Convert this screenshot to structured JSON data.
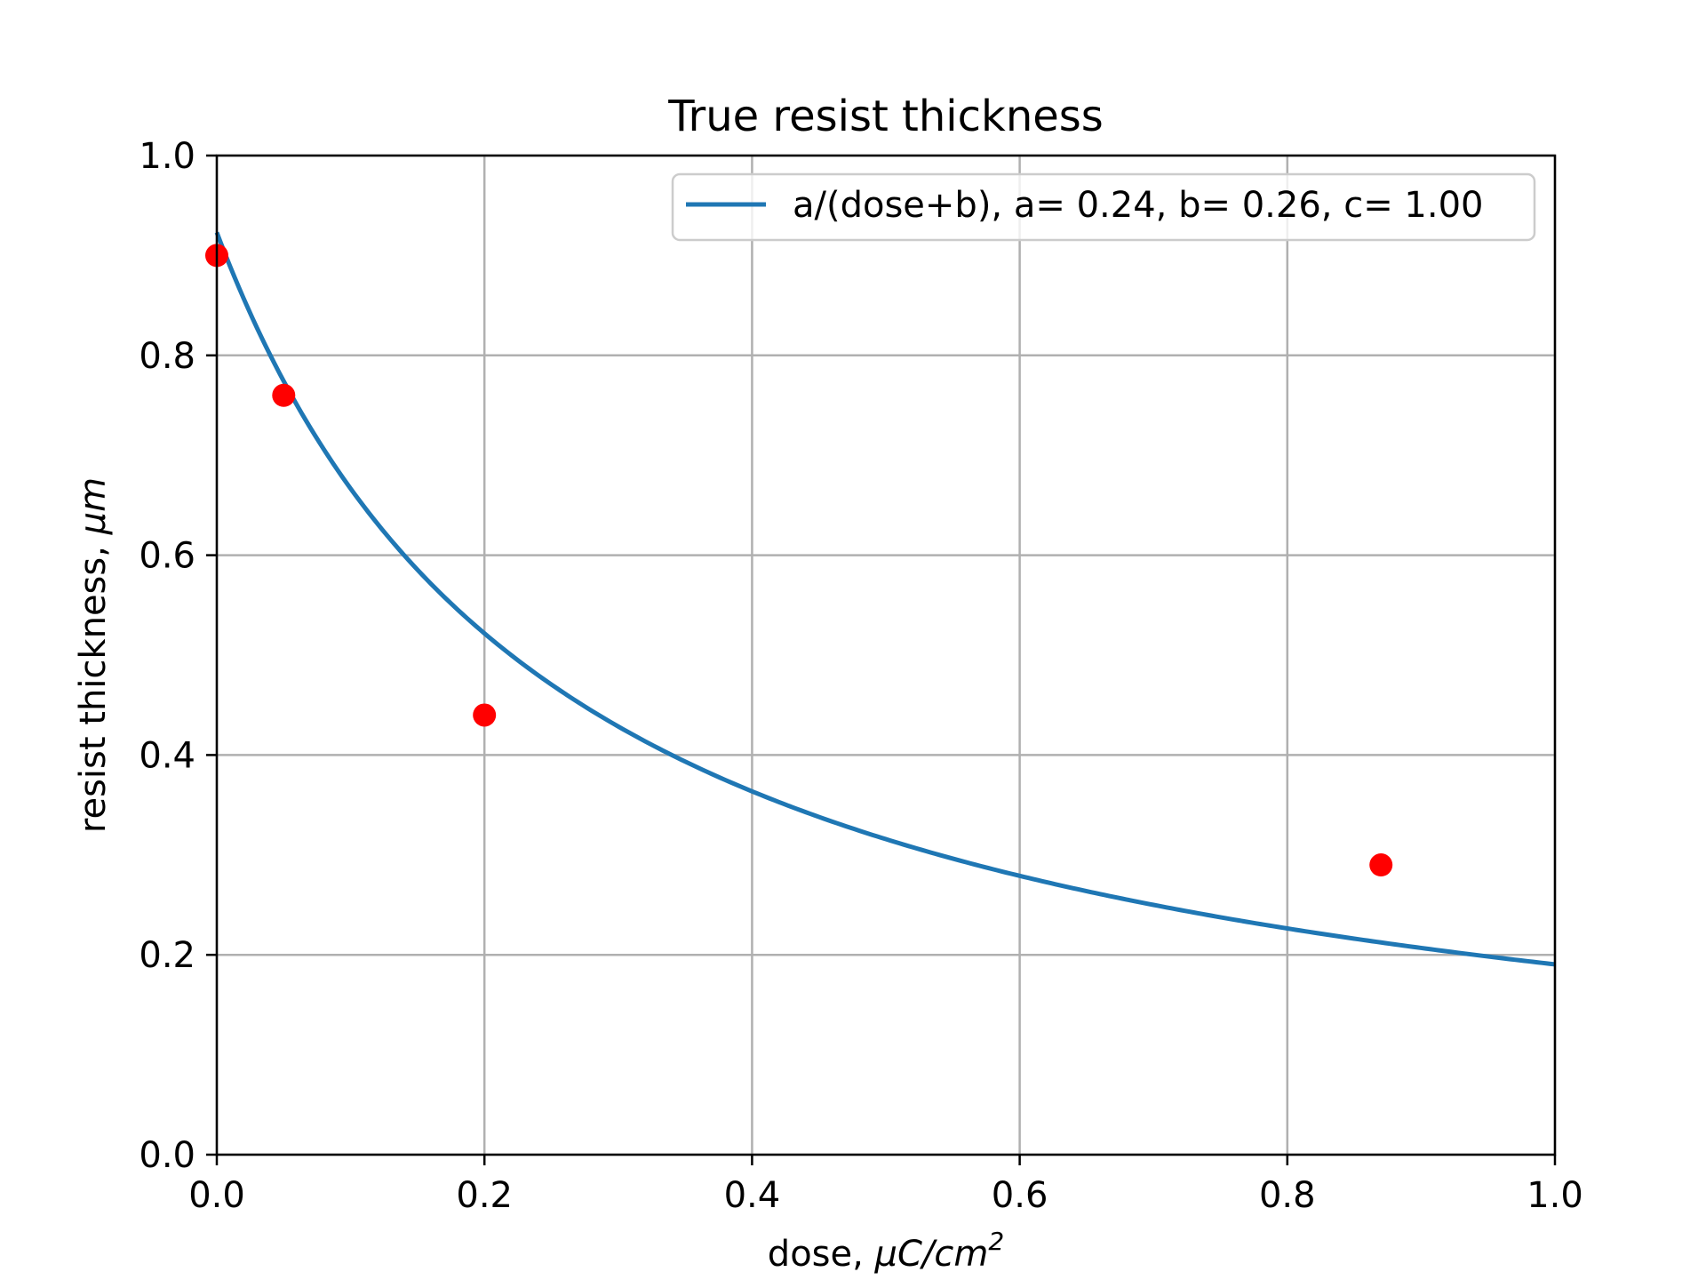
{
  "chart_data": {
    "type": "scatter",
    "title": "True resist thickness",
    "xlabel": {
      "prefix": "dose, ",
      "unit_main": "μC/cm",
      "unit_sup": "2"
    },
    "ylabel": {
      "prefix": "resist thickness, ",
      "unit": "μm"
    },
    "xlim": [
      0.0,
      1.0
    ],
    "ylim": [
      0.0,
      1.0
    ],
    "xticks": [
      "0.0",
      "0.2",
      "0.4",
      "0.6",
      "0.8",
      "1.0"
    ],
    "yticks": [
      "0.0",
      "0.2",
      "0.4",
      "0.6",
      "0.8",
      "1.0"
    ],
    "grid": true,
    "legend_position": "top-right",
    "series": [
      {
        "name": "a/(dose+b), a= 0.24, b= 0.26, c= 1.00",
        "kind": "line",
        "color": "#1f77b4",
        "function": "a/(dose+b)",
        "params": {
          "a": 0.24,
          "b": 0.26
        }
      },
      {
        "kind": "scatter",
        "color": "#ff0000",
        "points": [
          {
            "x": 0.0,
            "y": 0.9
          },
          {
            "x": 0.05,
            "y": 0.76
          },
          {
            "x": 0.2,
            "y": 0.44
          },
          {
            "x": 0.87,
            "y": 0.29
          }
        ]
      }
    ]
  }
}
